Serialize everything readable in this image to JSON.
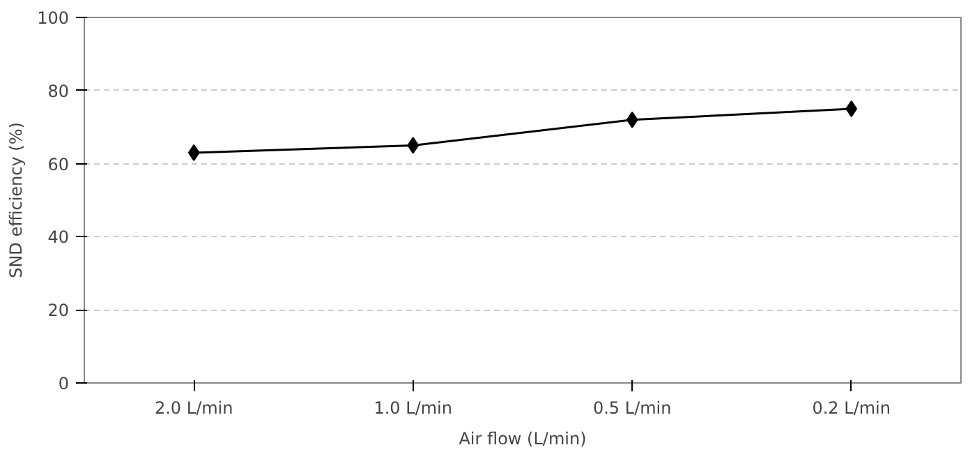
{
  "chart_data": {
    "type": "line",
    "xlabel": "Air flow (L/min)",
    "ylabel": "SND efficiency (%)",
    "categories": [
      "2.0 L/min",
      "1.0 L/min",
      "0.5 L/min",
      "0.2 L/min"
    ],
    "series": [
      {
        "color": "#000000",
        "values": [
          63,
          65,
          72,
          75
        ]
      }
    ],
    "ylim": [
      0,
      100
    ],
    "yticks": [
      0,
      20,
      40,
      60,
      80,
      100
    ],
    "grid": "y",
    "marker": "diamond",
    "line_style": "solid"
  }
}
